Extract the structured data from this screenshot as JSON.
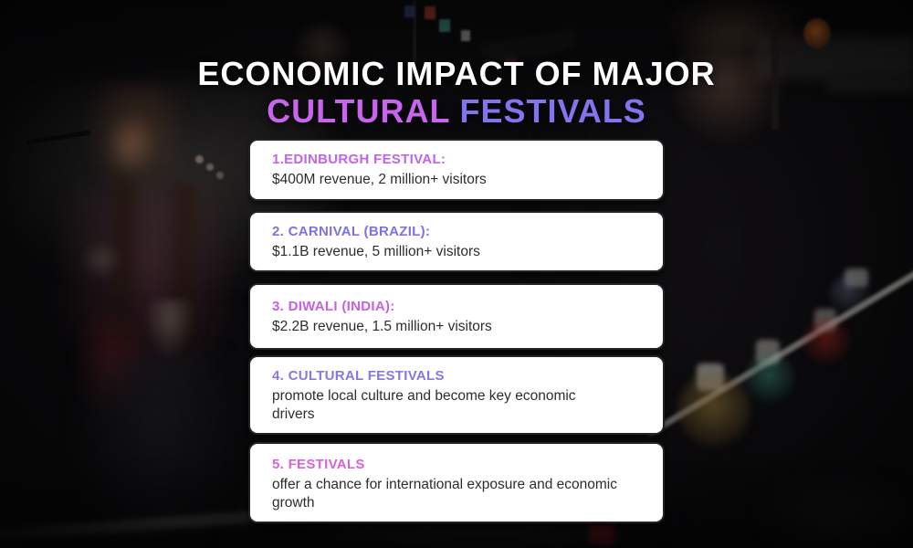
{
  "title": {
    "line1": "ECONOMIC IMPACT OF MAJOR",
    "line2_word1": "CULTURAL",
    "line2_word2": "FESTIVALS"
  },
  "colors": {
    "title_line1": "#ffffff",
    "title_pink": "#c864ee",
    "title_purple": "#8174ee",
    "card_background": "#ffffff",
    "card_border": "#232323",
    "card_body_text": "#2d2d2d",
    "page_background": "#0a090b"
  },
  "cards": [
    {
      "heading": "1.EDINBURGH FESTIVAL:",
      "body": "$400M revenue, 2 million+ visitors",
      "heading_color": "#c263e8"
    },
    {
      "heading": "2. CARNIVAL (BRAZIL):",
      "body": "$1.1B revenue, 5 million+ visitors",
      "heading_color": "#7d72e2"
    },
    {
      "heading": "3. DIWALI (INDIA):",
      "body": "$2.2B revenue, 1.5 million+ visitors",
      "heading_color": "#c85fe2"
    },
    {
      "heading": "4. CULTURAL FESTIVALS",
      "body": "promote local culture and become key economic drivers",
      "heading_color": "#8478e2"
    },
    {
      "heading": "5. FESTIVALS",
      "body": "offer a chance for international exposure and economic growth",
      "heading_color": "#d862dc"
    }
  ]
}
